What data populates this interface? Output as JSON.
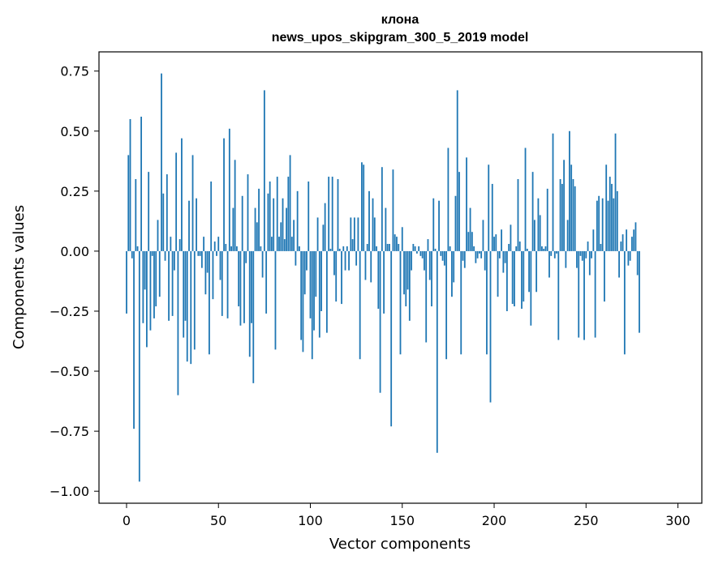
{
  "chart_data": {
    "type": "bar",
    "title_line1": "клона",
    "title_line2": "news_upos_skipgram_300_5_2019 model",
    "xlabel": "Vector components",
    "ylabel": "Components values",
    "xlim": [
      -15,
      313
    ],
    "ylim": [
      -1.05,
      0.83
    ],
    "xticks": [
      0,
      50,
      100,
      150,
      200,
      250,
      300
    ],
    "xtick_labels": [
      "0",
      "50",
      "100",
      "150",
      "200",
      "250",
      "300"
    ],
    "yticks": [
      0.75,
      0.5,
      0.25,
      0.0,
      -0.25,
      -0.5,
      -0.75,
      -1.0
    ],
    "ytick_labels": [
      "0.75",
      "0.50",
      "0.25",
      "0.00",
      "−0.25",
      "−0.50",
      "−0.75",
      "−1.00"
    ],
    "bar_color": "#1f77b4",
    "grid": false,
    "values": [
      -0.26,
      0.4,
      0.55,
      -0.03,
      -0.74,
      0.3,
      0.02,
      -0.96,
      0.56,
      -0.3,
      -0.16,
      -0.4,
      0.33,
      -0.33,
      -0.02,
      -0.28,
      -0.23,
      0.13,
      -0.19,
      0.74,
      0.24,
      -0.04,
      0.32,
      -0.29,
      0.06,
      -0.27,
      -0.08,
      0.41,
      -0.6,
      0.05,
      0.47,
      -0.36,
      -0.29,
      -0.46,
      0.21,
      -0.47,
      0.4,
      -0.41,
      0.22,
      -0.02,
      -0.02,
      -0.07,
      0.06,
      -0.18,
      -0.09,
      -0.43,
      0.29,
      -0.2,
      0.04,
      -0.02,
      0.06,
      -0.12,
      -0.27,
      0.47,
      0.03,
      -0.28,
      0.51,
      0.02,
      0.18,
      0.38,
      0.02,
      -0.23,
      -0.31,
      0.23,
      -0.3,
      -0.05,
      0.32,
      -0.44,
      -0.3,
      -0.55,
      0.18,
      0.12,
      0.26,
      0.02,
      -0.11,
      0.67,
      -0.26,
      0.24,
      0.29,
      0.06,
      0.22,
      -0.41,
      0.31,
      0.06,
      0.12,
      0.22,
      0.05,
      0.18,
      0.31,
      0.4,
      0.06,
      0.13,
      -0.06,
      0.25,
      0.02,
      -0.37,
      -0.42,
      -0.18,
      -0.08,
      0.29,
      -0.28,
      -0.45,
      -0.33,
      -0.19,
      0.14,
      -0.36,
      -0.25,
      0.11,
      0.2,
      -0.34,
      0.31,
      0.01,
      0.31,
      -0.1,
      -0.21,
      0.3,
      0.01,
      -0.22,
      0.02,
      -0.08,
      0.02,
      -0.08,
      0.14,
      0.05,
      0.14,
      -0.06,
      0.14,
      -0.45,
      0.37,
      0.36,
      -0.12,
      0.03,
      0.25,
      -0.13,
      0.22,
      0.14,
      0.02,
      -0.24,
      -0.59,
      0.35,
      -0.26,
      0.18,
      0.03,
      0.03,
      -0.73,
      0.34,
      0.07,
      0.06,
      0.03,
      -0.43,
      0.1,
      -0.18,
      -0.23,
      -0.16,
      -0.29,
      -0.08,
      0.03,
      0.02,
      -0.01,
      0.02,
      -0.02,
      -0.03,
      -0.08,
      -0.38,
      0.05,
      -0.12,
      -0.23,
      0.22,
      0.01,
      -0.84,
      0.21,
      -0.02,
      -0.04,
      -0.06,
      -0.45,
      0.43,
      0.02,
      -0.19,
      -0.13,
      0.23,
      0.67,
      0.33,
      -0.43,
      -0.04,
      -0.07,
      0.39,
      0.08,
      0.18,
      0.08,
      0.02,
      -0.05,
      -0.03,
      -0.01,
      -0.03,
      0.13,
      -0.08,
      -0.43,
      0.36,
      -0.63,
      0.28,
      0.06,
      0.07,
      -0.19,
      -0.03,
      0.09,
      -0.09,
      -0.05,
      -0.25,
      0.03,
      0.11,
      -0.22,
      -0.23,
      0.02,
      0.3,
      0.04,
      -0.24,
      -0.21,
      0.43,
      0.01,
      -0.17,
      -0.31,
      0.33,
      0.13,
      -0.17,
      0.22,
      0.15,
      0.02,
      0.01,
      0.02,
      0.26,
      -0.11,
      -0.02,
      0.49,
      -0.03,
      -0.01,
      -0.37,
      0.3,
      0.28,
      0.38,
      -0.07,
      0.13,
      0.5,
      0.36,
      0.3,
      0.27,
      -0.07,
      -0.36,
      -0.02,
      -0.04,
      -0.37,
      -0.03,
      0.04,
      -0.1,
      -0.03,
      0.09,
      -0.36,
      0.21,
      0.23,
      0.03,
      0.22,
      -0.21,
      0.36,
      0.21,
      0.31,
      0.28,
      0.22,
      0.49,
      0.25,
      -0.11,
      0.04,
      0.07,
      -0.43,
      0.09,
      -0.06,
      -0.04,
      0.06,
      0.09,
      0.12,
      -0.1,
      -0.34
    ]
  }
}
